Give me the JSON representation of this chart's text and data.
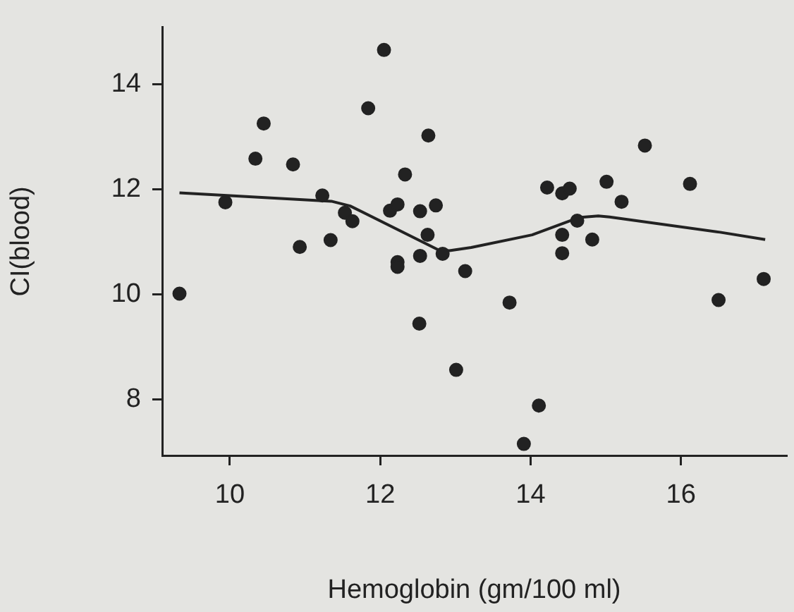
{
  "chart_data": {
    "type": "scatter",
    "xlabel": "Hemoglobin (gm/100 ml)",
    "ylabel": "CI(blood)",
    "xlim": [
      9.1,
      17.4
    ],
    "xticks": [
      10,
      12,
      14,
      16
    ],
    "ylim": [
      6.93,
      15.08
    ],
    "yticks": [
      8,
      10,
      12,
      14
    ],
    "grid": false,
    "legend": false,
    "marker": "circle",
    "series": [
      {
        "type": "scatter",
        "color": "#222222",
        "x": [
          9.33,
          9.94,
          10.34,
          10.45,
          10.84,
          10.93,
          11.23,
          11.34,
          11.53,
          11.63,
          11.84,
          12.05,
          12.64,
          12.33,
          12.13,
          12.23,
          12.53,
          12.74,
          12.63,
          12.53,
          12.23,
          12.23,
          12.83,
          13.13,
          12.52,
          13.01,
          13.72,
          13.91,
          14.11,
          14.22,
          14.42,
          14.52,
          14.42,
          14.42,
          14.62,
          14.82,
          15.01,
          15.21,
          15.52,
          16.12,
          16.5,
          17.1
        ],
        "values": [
          10.01,
          11.75,
          12.58,
          13.25,
          12.47,
          10.9,
          11.88,
          11.03,
          11.55,
          11.39,
          13.54,
          14.65,
          13.02,
          12.28,
          11.59,
          11.71,
          11.58,
          11.69,
          11.13,
          10.73,
          10.61,
          10.52,
          10.77,
          10.44,
          9.44,
          8.56,
          9.84,
          7.15,
          7.88,
          12.03,
          11.92,
          12.01,
          11.13,
          10.78,
          11.4,
          11.04,
          12.14,
          11.76,
          12.83,
          12.1,
          9.89,
          10.29
        ]
      },
      {
        "type": "line",
        "color": "#222222",
        "marker": "none",
        "line_style": "solid",
        "x": [
          9.33,
          11.35,
          11.6,
          12.78,
          12.92,
          13.21,
          14.02,
          14.64,
          14.9,
          15.05,
          16.52,
          17.12
        ],
        "values": [
          11.93,
          11.77,
          11.68,
          10.84,
          10.83,
          10.89,
          11.13,
          11.46,
          11.49,
          11.47,
          11.18,
          11.04
        ]
      }
    ]
  }
}
